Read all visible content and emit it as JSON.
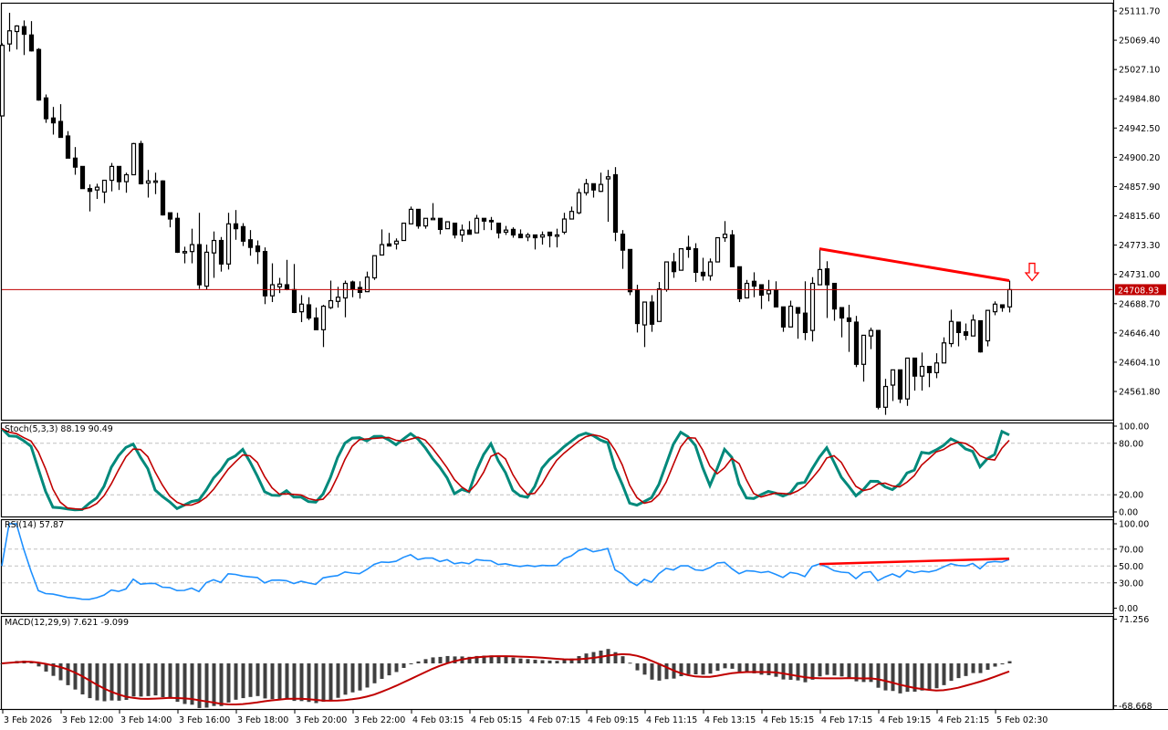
{
  "chart_data": {
    "type": "candlestick",
    "current_price": "24708.93",
    "price_ticks": [
      "25111.70",
      "25069.40",
      "25027.10",
      "24984.80",
      "24942.50",
      "24900.20",
      "24857.90",
      "24815.60",
      "24773.30",
      "24731.00",
      "24688.70",
      "24646.40",
      "24604.10",
      "24561.80"
    ],
    "time_labels": [
      "3 Feb 2026",
      "3 Feb 12:00",
      "3 Feb 14:00",
      "3 Feb 16:00",
      "3 Feb 18:00",
      "3 Feb 20:00",
      "3 Feb 22:00",
      "4 Feb 03:15",
      "4 Feb 05:15",
      "4 Feb 07:15",
      "4 Feb 09:15",
      "4 Feb 11:15",
      "4 Feb 13:15",
      "4 Feb 15:15",
      "4 Feb 17:15",
      "4 Feb 19:15",
      "4 Feb 21:15",
      "5 Feb 02:30"
    ],
    "ohlc": [
      [
        24960,
        25065,
        24960,
        25062
      ],
      [
        25064,
        25109,
        25053,
        25083
      ],
      [
        25082,
        25091,
        25056,
        25090
      ],
      [
        25089,
        25098,
        25048,
        25078
      ],
      [
        25077,
        25097,
        25053,
        25054
      ],
      [
        25056,
        25058,
        24982,
        24983
      ],
      [
        24986,
        24991,
        24950,
        24956
      ],
      [
        24957,
        24973,
        24933,
        24950
      ],
      [
        24952,
        24977,
        24929,
        24929
      ],
      [
        24931,
        24938,
        24899,
        24899
      ],
      [
        24899,
        24915,
        24875,
        24886
      ],
      [
        24887,
        24887,
        24855,
        24855
      ],
      [
        24855,
        24861,
        24822,
        24851
      ],
      [
        24853,
        24862,
        24840,
        24857
      ],
      [
        24850,
        24867,
        24834,
        24867
      ],
      [
        24867,
        24892,
        24851,
        24887
      ],
      [
        24887,
        24887,
        24853,
        24865
      ],
      [
        24865,
        24878,
        24849,
        24875
      ],
      [
        24875,
        24921,
        24875,
        24920
      ],
      [
        24920,
        24924,
        24861,
        24862
      ],
      [
        24863,
        24882,
        24842,
        24866
      ],
      [
        24866,
        24878,
        24847,
        24866
      ],
      [
        24866,
        24867,
        24816,
        24817
      ],
      [
        24820,
        24820,
        24799,
        24811
      ],
      [
        24812,
        24820,
        24762,
        24763
      ],
      [
        24764,
        24771,
        24747,
        24764
      ],
      [
        24764,
        24797,
        24747,
        24774
      ],
      [
        24774,
        24820,
        24710,
        24716
      ],
      [
        24714,
        24774,
        24709,
        24763
      ],
      [
        24762,
        24793,
        24726,
        24780
      ],
      [
        24780,
        24785,
        24735,
        24746
      ],
      [
        24746,
        24820,
        24738,
        24804
      ],
      [
        24804,
        24824,
        24781,
        24797
      ],
      [
        24800,
        24805,
        24772,
        24779
      ],
      [
        24781,
        24795,
        24758,
        24770
      ],
      [
        24772,
        24780,
        24746,
        24764
      ],
      [
        24764,
        24770,
        24688,
        24700
      ],
      [
        24700,
        24747,
        24691,
        24716
      ],
      [
        24713,
        24726,
        24704,
        24717
      ],
      [
        24716,
        24752,
        24708,
        24709
      ],
      [
        24709,
        24746,
        24675,
        24676
      ],
      [
        24677,
        24701,
        24662,
        24688
      ],
      [
        24687,
        24698,
        24665,
        24668
      ],
      [
        24668,
        24683,
        24651,
        24651
      ],
      [
        24651,
        24687,
        24626,
        24685
      ],
      [
        24683,
        24722,
        24681,
        24693
      ],
      [
        24692,
        24713,
        24683,
        24698
      ],
      [
        24697,
        24722,
        24669,
        24718
      ],
      [
        24720,
        24722,
        24698,
        24710
      ],
      [
        24712,
        24721,
        24696,
        24705
      ],
      [
        24706,
        24735,
        24706,
        24727
      ],
      [
        24726,
        24758,
        24723,
        24758
      ],
      [
        24759,
        24796,
        24759,
        24774
      ],
      [
        24775,
        24791,
        24772,
        24772
      ],
      [
        24775,
        24783,
        24767,
        24779
      ],
      [
        24780,
        24805,
        24780,
        24805
      ],
      [
        24804,
        24829,
        24804,
        24825
      ],
      [
        24825,
        24825,
        24797,
        24801
      ],
      [
        24801,
        24812,
        24797,
        24812
      ],
      [
        24812,
        24834,
        24811,
        24812
      ],
      [
        24812,
        24812,
        24789,
        24796
      ],
      [
        24797,
        24807,
        24797,
        24807
      ],
      [
        24805,
        24805,
        24783,
        24788
      ],
      [
        24788,
        24803,
        24778,
        24795
      ],
      [
        24795,
        24808,
        24789,
        24789
      ],
      [
        24791,
        24817,
        24791,
        24812
      ],
      [
        24812,
        24812,
        24795,
        24808
      ],
      [
        24809,
        24814,
        24795,
        24807
      ],
      [
        24805,
        24805,
        24783,
        24791
      ],
      [
        24792,
        24801,
        24788,
        24795
      ],
      [
        24796,
        24799,
        24784,
        24788
      ],
      [
        24789,
        24796,
        24784,
        24784
      ],
      [
        24785,
        24791,
        24779,
        24788
      ],
      [
        24788,
        24788,
        24767,
        24784
      ],
      [
        24785,
        24793,
        24774,
        24788
      ],
      [
        24792,
        24792,
        24770,
        24787
      ],
      [
        24788,
        24797,
        24770,
        24788
      ],
      [
        24792,
        24820,
        24789,
        24811
      ],
      [
        24811,
        24829,
        24811,
        24822
      ],
      [
        24820,
        24855,
        24818,
        24849
      ],
      [
        24849,
        24869,
        24845,
        24862
      ],
      [
        24862,
        24862,
        24842,
        24853
      ],
      [
        24851,
        24878,
        24850,
        24861
      ],
      [
        24869,
        24882,
        24807,
        24872
      ],
      [
        24875,
        24886,
        24779,
        24792
      ],
      [
        24789,
        24795,
        24739,
        24766
      ],
      [
        24767,
        24767,
        24701,
        24706
      ],
      [
        24708,
        24716,
        24647,
        24660
      ],
      [
        24658,
        24691,
        24626,
        24691
      ],
      [
        24691,
        24701,
        24648,
        24659
      ],
      [
        24663,
        24720,
        24663,
        24710
      ],
      [
        24709,
        24749,
        24706,
        24749
      ],
      [
        24749,
        24762,
        24726,
        24735
      ],
      [
        24737,
        24768,
        24737,
        24768
      ],
      [
        24770,
        24787,
        24755,
        24767
      ],
      [
        24768,
        24776,
        24720,
        24734
      ],
      [
        24734,
        24755,
        24722,
        24729
      ],
      [
        24729,
        24754,
        24722,
        24749
      ],
      [
        24749,
        24784,
        24749,
        24784
      ],
      [
        24784,
        24808,
        24778,
        24789
      ],
      [
        24788,
        24795,
        24742,
        24742
      ],
      [
        24742,
        24742,
        24691,
        24696
      ],
      [
        24697,
        24723,
        24697,
        24718
      ],
      [
        24721,
        24734,
        24698,
        24714
      ],
      [
        24716,
        24716,
        24681,
        24701
      ],
      [
        24703,
        24723,
        24692,
        24708
      ],
      [
        24708,
        24721,
        24684,
        24684
      ],
      [
        24684,
        24684,
        24648,
        24655
      ],
      [
        24655,
        24693,
        24655,
        24685
      ],
      [
        24683,
        24683,
        24638,
        24675
      ],
      [
        24675,
        24721,
        24636,
        24647
      ],
      [
        24650,
        24727,
        24634,
        24718
      ],
      [
        24716,
        24768,
        24716,
        24738
      ],
      [
        24739,
        24750,
        24668,
        24716
      ],
      [
        24718,
        24718,
        24664,
        24681
      ],
      [
        24683,
        24683,
        24640,
        24668
      ],
      [
        24668,
        24687,
        24619,
        24663
      ],
      [
        24662,
        24671,
        24597,
        24601
      ],
      [
        24601,
        24643,
        24576,
        24643
      ],
      [
        24642,
        24654,
        24623,
        24650
      ],
      [
        24650,
        24650,
        24536,
        24539
      ],
      [
        24539,
        24580,
        24528,
        24569
      ],
      [
        24571,
        24593,
        24548,
        24593
      ],
      [
        24593,
        24593,
        24545,
        24551
      ],
      [
        24551,
        24610,
        24541,
        24610
      ],
      [
        24610,
        24610,
        24563,
        24584
      ],
      [
        24584,
        24618,
        24563,
        24598
      ],
      [
        24598,
        24598,
        24568,
        24589
      ],
      [
        24589,
        24617,
        24581,
        24603
      ],
      [
        24603,
        24640,
        24603,
        24632
      ],
      [
        24631,
        24680,
        24626,
        24663
      ],
      [
        24662,
        24662,
        24627,
        24647
      ],
      [
        24648,
        24660,
        24636,
        24643
      ],
      [
        24642,
        24673,
        24642,
        24665
      ],
      [
        24664,
        24664,
        24618,
        24619
      ],
      [
        24635,
        24679,
        24627,
        24679
      ],
      [
        24677,
        24692,
        24672,
        24688
      ],
      [
        24687,
        24687,
        24677,
        24683
      ],
      [
        24684,
        24722,
        24676,
        24708.93
      ]
    ],
    "trendline": {
      "from": {
        "bar": 112,
        "price": 24768
      },
      "to": {
        "bar": 138,
        "price": 24722
      },
      "color": "#FF0000"
    },
    "signal_arrow": {
      "direction": "down",
      "bar": 141,
      "price_top": 24747,
      "price_tip": 24722,
      "color": "#FF0000"
    },
    "indicators": {
      "stoch": {
        "label": "Stoch(5,3,3) 88.19 90.49",
        "k": 5,
        "d": 3,
        "slowing": 3,
        "ticks": [
          "100.00",
          "80.00",
          "20.00",
          "0.00"
        ],
        "levels": [
          80,
          20
        ],
        "main_color": "#00897B",
        "signal_color": "#C00000"
      },
      "rsi": {
        "label": "RSI(14) 57.87",
        "period": 14,
        "ticks": [
          "100.00",
          "70.00",
          "50.00",
          "30.00",
          "0.00"
        ],
        "levels": [
          70,
          50,
          30
        ],
        "color": "#1E90FF",
        "trendline": {
          "from": {
            "bar": 112,
            "value": 52.3
          },
          "to": {
            "bar": 138,
            "value": 58.7
          },
          "color": "#FF0000"
        }
      },
      "macd": {
        "label": "MACD(12,29,9) 7.621 -9.099",
        "fast": 12,
        "slow": 29,
        "signal": 9,
        "ticks": [
          "71.256",
          "-68.668"
        ],
        "range": [
          -68.668,
          71.256
        ],
        "bar_color": "#404040",
        "signal_color": "#C00000"
      }
    },
    "colors": {
      "bull_body": "#FFFFFF",
      "bear_body": "#000000",
      "price_line": "#C00000",
      "price_label_bg": "#C00000"
    }
  }
}
